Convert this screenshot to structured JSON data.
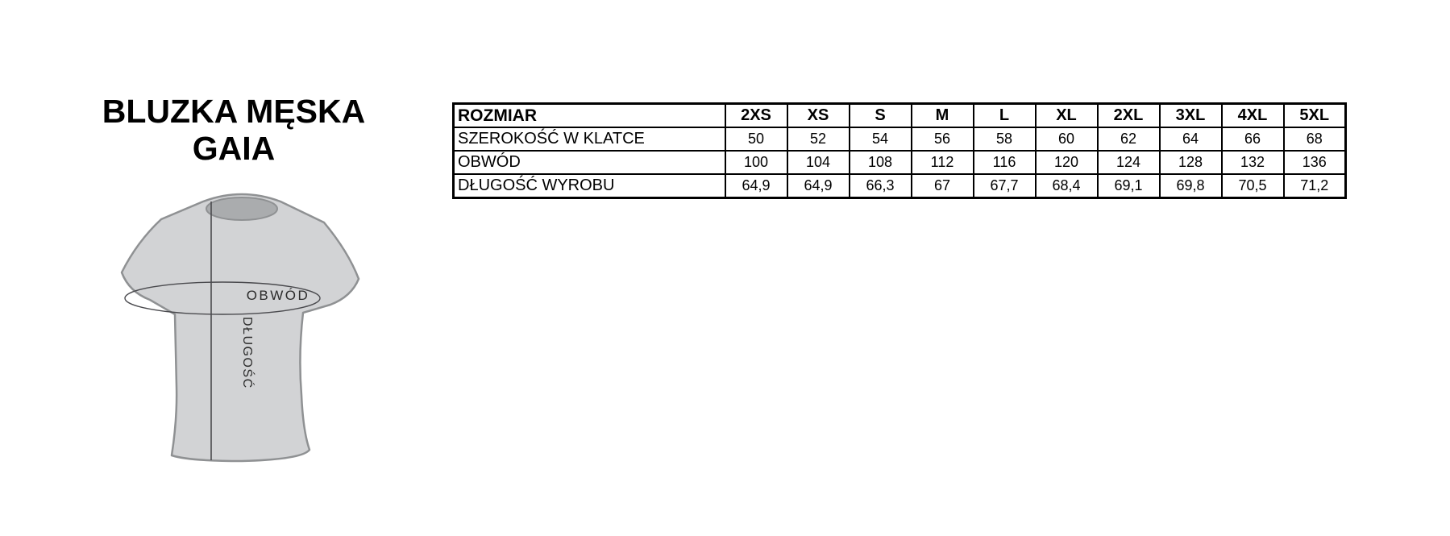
{
  "title": {
    "line1": "BLUZKA MĘSKA",
    "line2": "GAIA"
  },
  "diagram": {
    "name": "t-shirt-measurement-diagram",
    "circumference_label": "OBWÓD",
    "length_label": "DŁUGOŚĆ"
  },
  "table": {
    "header_label": "ROZMIAR",
    "sizes": [
      "2XS",
      "XS",
      "S",
      "M",
      "L",
      "XL",
      "2XL",
      "3XL",
      "4XL",
      "5XL"
    ],
    "rows": [
      {
        "label": "SZEROKOŚĆ W KLATCE",
        "values": [
          "50",
          "52",
          "54",
          "56",
          "58",
          "60",
          "62",
          "64",
          "66",
          "68"
        ]
      },
      {
        "label": "OBWÓD",
        "values": [
          "100",
          "104",
          "108",
          "112",
          "116",
          "120",
          "124",
          "128",
          "132",
          "136"
        ]
      },
      {
        "label": "DŁUGOŚĆ WYROBU",
        "values": [
          "64,9",
          "64,9",
          "66,3",
          "67",
          "67,7",
          "68,4",
          "69,1",
          "69,8",
          "70,5",
          "71,2"
        ]
      }
    ]
  },
  "colors": {
    "background": "#ffffff",
    "table_border": "#000000",
    "text": "#000000",
    "shirt_fill": "#d2d3d5",
    "collar_fill": "#aaacae",
    "shirt_outline": "#8f9193",
    "measure_line": "#4a4a4e",
    "shirt_text": "#2b2b2b"
  }
}
